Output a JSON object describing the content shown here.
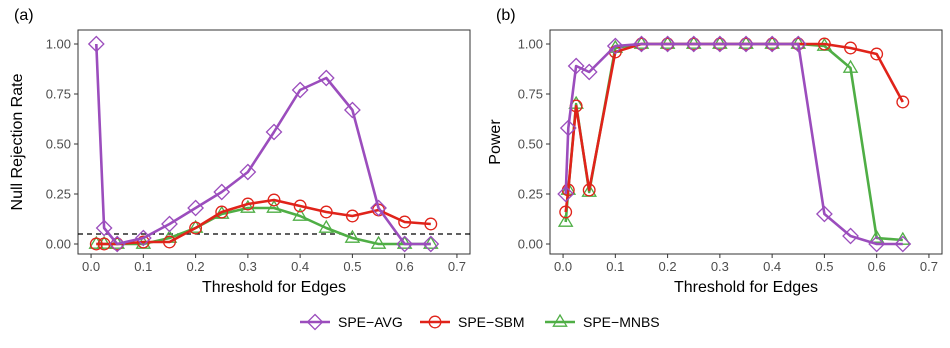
{
  "chart_data": [
    {
      "type": "line",
      "panel_label": "(a)",
      "xlabel": "Threshold for Edges",
      "ylabel": "Null Rejection Rate",
      "xlim": [
        -0.025,
        0.725
      ],
      "ylim": [
        -0.05,
        1.07
      ],
      "xticks": [
        0.0,
        0.1,
        0.2,
        0.3,
        0.4,
        0.5,
        0.6,
        0.7
      ],
      "xtick_labels": [
        "0.0",
        "0.1",
        "0.2",
        "0.3",
        "0.4",
        "0.5",
        "0.6",
        "0.7"
      ],
      "yticks": [
        0.0,
        0.25,
        0.5,
        0.75,
        1.0
      ],
      "ytick_labels": [
        "0.00",
        "0.25",
        "0.50",
        "0.75",
        "1.00"
      ],
      "reference_line": {
        "y": 0.05,
        "style": "dashed"
      },
      "grid": false,
      "series": [
        {
          "name": "SPE−AVG",
          "color": "#9b4dbd",
          "marker": "diamond",
          "x": [
            0.01,
            0.025,
            0.05,
            0.1,
            0.15,
            0.2,
            0.25,
            0.3,
            0.35,
            0.4,
            0.45,
            0.5,
            0.55,
            0.6,
            0.65
          ],
          "y": [
            1.0,
            0.08,
            0.0,
            0.03,
            0.1,
            0.18,
            0.26,
            0.36,
            0.56,
            0.77,
            0.83,
            0.67,
            0.18,
            0.0,
            0.0
          ]
        },
        {
          "name": "SPE−SBM",
          "color": "#e0231a",
          "marker": "circle",
          "x": [
            0.01,
            0.025,
            0.05,
            0.1,
            0.15,
            0.2,
            0.25,
            0.3,
            0.35,
            0.4,
            0.45,
            0.5,
            0.55,
            0.6,
            0.65
          ],
          "y": [
            0.0,
            0.0,
            0.0,
            0.01,
            0.01,
            0.08,
            0.16,
            0.2,
            0.22,
            0.19,
            0.16,
            0.14,
            0.17,
            0.11,
            0.1
          ]
        },
        {
          "name": "SPE−MNBS",
          "color": "#4fae45",
          "marker": "triangle",
          "x": [
            0.01,
            0.025,
            0.05,
            0.1,
            0.15,
            0.2,
            0.25,
            0.3,
            0.35,
            0.4,
            0.45,
            0.5,
            0.55,
            0.6,
            0.65
          ],
          "y": [
            0.0,
            0.0,
            0.0,
            0.0,
            0.03,
            0.08,
            0.15,
            0.18,
            0.18,
            0.14,
            0.08,
            0.03,
            0.0,
            0.0,
            0.0
          ]
        }
      ]
    },
    {
      "type": "line",
      "panel_label": "(b)",
      "xlabel": "Threshold for Edges",
      "ylabel": "Power",
      "xlim": [
        -0.025,
        0.725
      ],
      "ylim": [
        -0.05,
        1.07
      ],
      "xticks": [
        0.0,
        0.1,
        0.2,
        0.3,
        0.4,
        0.5,
        0.6,
        0.7
      ],
      "xtick_labels": [
        "0.0",
        "0.1",
        "0.2",
        "0.3",
        "0.4",
        "0.5",
        "0.6",
        "0.7"
      ],
      "yticks": [
        0.0,
        0.25,
        0.5,
        0.75,
        1.0
      ],
      "ytick_labels": [
        "0.00",
        "0.25",
        "0.50",
        "0.75",
        "1.00"
      ],
      "grid": false,
      "series": [
        {
          "name": "SPE−AVG",
          "color": "#9b4dbd",
          "marker": "diamond",
          "x": [
            0.005,
            0.01,
            0.025,
            0.05,
            0.1,
            0.15,
            0.2,
            0.25,
            0.3,
            0.35,
            0.4,
            0.45,
            0.5,
            0.55,
            0.6,
            0.65
          ],
          "y": [
            0.25,
            0.58,
            0.89,
            0.86,
            0.99,
            1.0,
            1.0,
            1.0,
            1.0,
            1.0,
            1.0,
            1.0,
            0.15,
            0.04,
            0.0,
            0.0
          ]
        },
        {
          "name": "SPE−SBM",
          "color": "#e0231a",
          "marker": "circle",
          "x": [
            0.005,
            0.01,
            0.025,
            0.05,
            0.1,
            0.15,
            0.2,
            0.25,
            0.3,
            0.35,
            0.4,
            0.45,
            0.5,
            0.55,
            0.6,
            0.65
          ],
          "y": [
            0.16,
            0.27,
            0.69,
            0.27,
            0.96,
            1.0,
            1.0,
            1.0,
            1.0,
            1.0,
            1.0,
            1.0,
            1.0,
            0.98,
            0.95,
            0.71
          ]
        },
        {
          "name": "SPE−MNBS",
          "color": "#4fae45",
          "marker": "triangle",
          "x": [
            0.005,
            0.01,
            0.025,
            0.05,
            0.1,
            0.15,
            0.2,
            0.25,
            0.3,
            0.35,
            0.4,
            0.45,
            0.5,
            0.55,
            0.6,
            0.65
          ],
          "y": [
            0.11,
            0.27,
            0.7,
            0.26,
            0.98,
            1.0,
            1.0,
            1.0,
            1.0,
            1.0,
            1.0,
            1.0,
            0.99,
            0.88,
            0.03,
            0.02
          ]
        }
      ]
    }
  ],
  "legend": {
    "placement": "bottom-center",
    "items": [
      {
        "label": "SPE−AVG",
        "color": "#9b4dbd",
        "marker": "diamond"
      },
      {
        "label": "SPE−SBM",
        "color": "#e0231a",
        "marker": "circle"
      },
      {
        "label": "SPE−MNBS",
        "color": "#4fae45",
        "marker": "triangle"
      }
    ]
  }
}
